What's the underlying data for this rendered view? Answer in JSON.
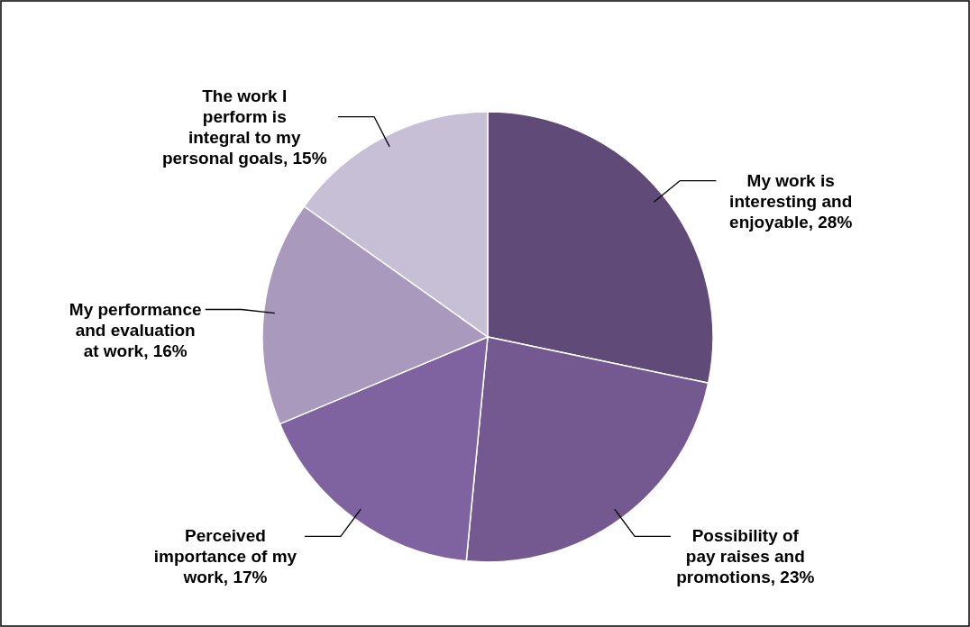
{
  "chart_data": {
    "type": "pie",
    "categories": [
      "My work is interesting and enjoyable",
      "Possibility of pay raises and promotions",
      "Perceived importance of my work",
      "My performance and evaluation at work",
      "The work I perform is integral to my personal goals"
    ],
    "values": [
      28,
      23,
      17,
      16,
      15
    ],
    "value_labels": [
      "28%",
      "23%",
      "17%",
      "16%",
      "15%"
    ],
    "colors": [
      "#5f4a78",
      "#735990",
      "#7f63a0",
      "#a899bd",
      "#c7bfd6"
    ]
  }
}
